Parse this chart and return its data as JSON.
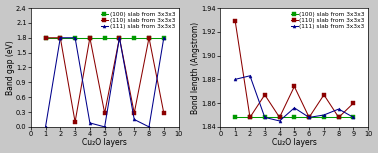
{
  "left": {
    "xlabel": "Cu₂O layers",
    "ylabel": "Band gap (eV)",
    "xlim": [
      0,
      10
    ],
    "ylim": [
      0.0,
      2.4
    ],
    "yticks": [
      0.0,
      0.3,
      0.6,
      0.9,
      1.2,
      1.5,
      1.8,
      2.1,
      2.4
    ],
    "xticks": [
      0,
      1,
      2,
      3,
      4,
      5,
      6,
      7,
      8,
      9,
      10
    ],
    "series": {
      "100": {
        "x": [
          1,
          2,
          3,
          4,
          5,
          6,
          7,
          8,
          9
        ],
        "y": [
          1.8,
          1.8,
          1.8,
          1.8,
          1.8,
          1.8,
          1.8,
          1.8,
          1.8
        ],
        "color": "#009900",
        "marker": "s",
        "label": "(100) slab from 3x3x3"
      },
      "110": {
        "x": [
          1,
          2,
          3,
          4,
          5,
          6,
          7,
          8,
          9
        ],
        "y": [
          1.8,
          1.8,
          0.1,
          1.8,
          0.28,
          1.8,
          0.28,
          1.8,
          0.28
        ],
        "color": "#8b0000",
        "marker": "s",
        "label": "(110) slab from 3x3x3"
      },
      "111": {
        "x": [
          1,
          2,
          3,
          4,
          5,
          6,
          7,
          8,
          9
        ],
        "y": [
          0.0,
          1.8,
          1.8,
          0.08,
          0.0,
          1.8,
          0.15,
          0.0,
          1.8
        ],
        "color": "#00008b",
        "marker": "^",
        "label": "(111) slab from 3x3x3"
      }
    }
  },
  "right": {
    "xlabel": "Cu₂O layers",
    "ylabel": "Bond length (Angstrom)",
    "xlim": [
      0,
      10
    ],
    "ylim": [
      1.84,
      1.94
    ],
    "yticks": [
      1.84,
      1.86,
      1.88,
      1.9,
      1.92,
      1.94
    ],
    "xticks": [
      0,
      1,
      2,
      3,
      4,
      5,
      6,
      7,
      8,
      9,
      10
    ],
    "series": {
      "100": {
        "x": [
          1,
          2,
          3,
          4,
          5,
          6,
          7,
          8,
          9
        ],
        "y": [
          1.848,
          1.848,
          1.848,
          1.848,
          1.848,
          1.848,
          1.848,
          1.848,
          1.848
        ],
        "color": "#009900",
        "marker": "s",
        "label": "(100) slab from 3x3x3"
      },
      "110": {
        "x": [
          1,
          2,
          3,
          4,
          5,
          6,
          7,
          8,
          9
        ],
        "y": [
          1.929,
          1.848,
          1.867,
          1.848,
          1.874,
          1.848,
          1.867,
          1.848,
          1.86
        ],
        "color": "#8b0000",
        "marker": "s",
        "label": "(110) slab from 3x3x3"
      },
      "111": {
        "x": [
          1,
          2,
          3,
          4,
          5,
          6,
          7,
          8,
          9
        ],
        "y": [
          1.88,
          1.883,
          1.848,
          1.845,
          1.856,
          1.848,
          1.85,
          1.855,
          1.848
        ],
        "color": "#00008b",
        "marker": "^",
        "label": "(111) slab from 3x3x3"
      }
    }
  },
  "legend_fontsize": 4.2,
  "axis_fontsize": 5.5,
  "tick_fontsize": 4.8,
  "linewidth": 0.75,
  "markersize": 2.2,
  "figure_facecolor": "#c8c8c8",
  "axes_facecolor": "#ffffff"
}
